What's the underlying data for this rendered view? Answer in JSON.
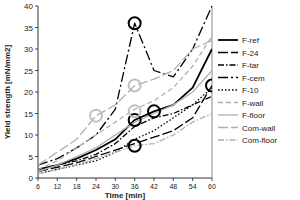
{
  "chart_data": {
    "type": "line",
    "x_label": "Time [min]",
    "y_label": "Yield strength [mN/mm2]",
    "xlim": [
      6,
      60
    ],
    "xticks": [
      6,
      12,
      18,
      24,
      30,
      36,
      42,
      48,
      54,
      60
    ],
    "ylim": [
      0,
      40
    ],
    "yticks": [
      0,
      5,
      10,
      15,
      20,
      25,
      30,
      35,
      40
    ],
    "grid": false,
    "legend": "right",
    "x": [
      6,
      12,
      18,
      24,
      30,
      36,
      42,
      48,
      54,
      60
    ],
    "series": [
      {
        "name": "F-ref",
        "color": "#000000",
        "line_style": "solid",
        "values": [
          2,
          3,
          4.5,
          6.5,
          9,
          13.5,
          15.5,
          17,
          21,
          30
        ]
      },
      {
        "name": "F-24",
        "color": "#000000",
        "line_style": "longdash",
        "values": [
          1.5,
          2.5,
          3.5,
          5,
          6.5,
          8,
          9.5,
          11,
          14,
          21.5
        ]
      },
      {
        "name": "F-tar",
        "color": "#000000",
        "line_style": "dashdot",
        "values": [
          2,
          3,
          4,
          5.5,
          8,
          12,
          14,
          15,
          17,
          19
        ]
      },
      {
        "name": "F-cem",
        "color": "#000000",
        "line_style": "longdashdot",
        "values": [
          3,
          4.5,
          7,
          10,
          16,
          36,
          25,
          23.5,
          30,
          40
        ]
      },
      {
        "name": "F-10",
        "color": "#000000",
        "line_style": "dotted",
        "values": [
          1,
          2,
          3,
          4,
          6,
          9,
          11,
          14,
          17,
          21
        ]
      },
      {
        "name": "F-wall",
        "color": "#b0b0b0",
        "line_style": "dashed",
        "values": [
          2,
          4,
          7,
          10,
          13,
          16,
          18,
          21,
          26,
          33
        ]
      },
      {
        "name": "F-floor",
        "color": "#b0b0b0",
        "line_style": "solid",
        "values": [
          1.5,
          3,
          5,
          7,
          10,
          13,
          15,
          17,
          20,
          25
        ]
      },
      {
        "name": "Com-wall",
        "color": "#b0b0b0",
        "line_style": "longdash",
        "values": [
          3,
          6,
          9,
          14.5,
          17,
          21.5,
          23,
          25,
          30,
          32
        ]
      },
      {
        "name": "Com-floor",
        "color": "#b0b0b0",
        "line_style": "dashdot",
        "values": [
          1,
          2,
          3,
          4.5,
          6,
          7.5,
          8,
          10,
          13,
          15
        ]
      },
      {
        "type": "scatter",
        "marker": "circle",
        "color": "#000000",
        "x": [
          36,
          36,
          36,
          42,
          60
        ],
        "values": [
          36,
          13.5,
          7.5,
          15.5,
          21.5
        ]
      },
      {
        "type": "scatter",
        "marker": "circle",
        "color": "#c0c0c0",
        "x": [
          24,
          36,
          36
        ],
        "values": [
          14.5,
          21.5,
          15.5
        ]
      }
    ]
  }
}
